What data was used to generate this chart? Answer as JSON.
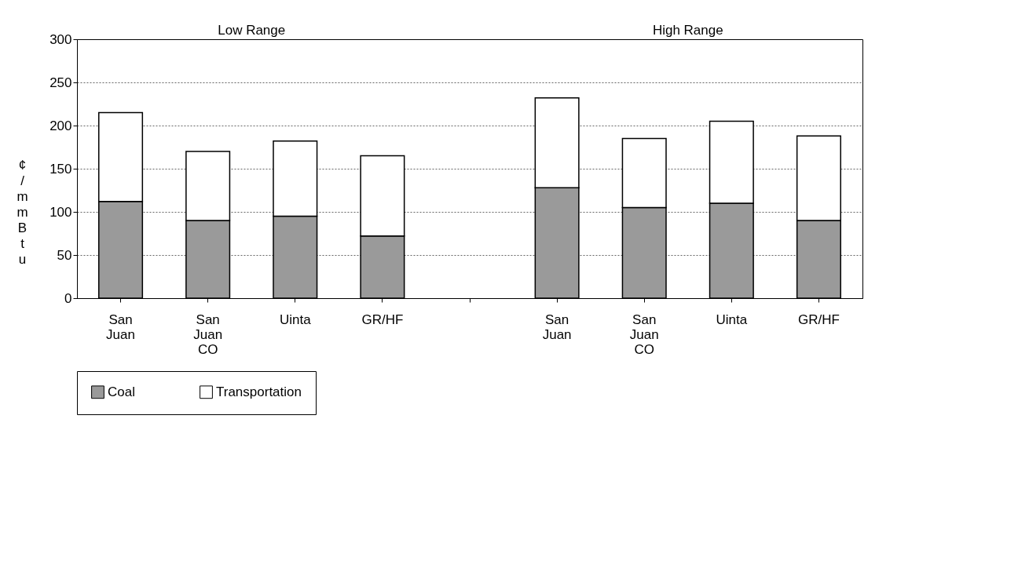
{
  "chart_data": {
    "type": "bar",
    "stacked": true,
    "ylabel": "¢/mmBtu",
    "categories": [
      "San Juan",
      "San Juan CO",
      "Uinta",
      "GR/HF",
      null,
      "San Juan",
      "San Juan CO",
      "Uinta",
      "GR/HF"
    ],
    "series": [
      {
        "name": "Coal",
        "color": "#9a9a9a",
        "values": [
          112,
          90,
          95,
          72,
          null,
          128,
          105,
          110,
          90
        ]
      },
      {
        "name": "Transportation",
        "color": "#ffffff",
        "values": [
          103,
          80,
          87,
          93,
          null,
          104,
          80,
          95,
          98
        ]
      }
    ],
    "ylim": [
      0,
      300
    ],
    "yticks": [
      0,
      50,
      100,
      150,
      200,
      250,
      300
    ],
    "grid": "y",
    "legend": "bottom",
    "annotations": [
      "Low Range",
      "High Range"
    ]
  }
}
